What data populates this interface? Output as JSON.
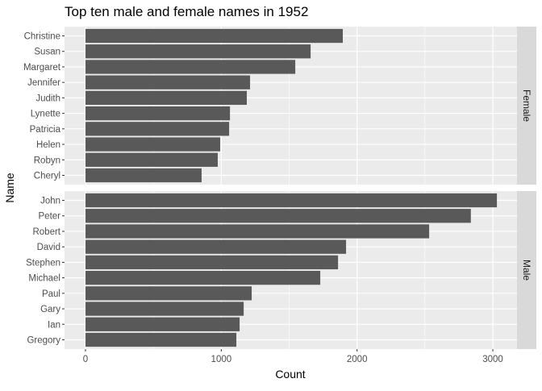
{
  "chart_data": {
    "type": "bar",
    "orientation": "horizontal",
    "title": "Top ten male and female names in 1952",
    "xlabel": "Count",
    "ylabel": "Name",
    "xlim": [
      0,
      3180
    ],
    "x_ticks": [
      0,
      1000,
      2000,
      3000
    ],
    "x_tick_labels": [
      "0",
      "1000",
      "2000",
      "3000"
    ],
    "grid": true,
    "bar_color": "#595959",
    "panel_background": "#EBEBEB",
    "strip_background": "#D9D9D9",
    "facets": [
      {
        "label": "Female",
        "categories": [
          "Christine",
          "Susan",
          "Margaret",
          "Jennifer",
          "Judith",
          "Lynette",
          "Patricia",
          "Helen",
          "Robyn",
          "Cheryl"
        ],
        "values": [
          1895,
          1658,
          1545,
          1212,
          1188,
          1064,
          1058,
          992,
          974,
          855
        ]
      },
      {
        "label": "Male",
        "categories": [
          "John",
          "Peter",
          "Robert",
          "David",
          "Stephen",
          "Michael",
          "Paul",
          "Gary",
          "Ian",
          "Gregory"
        ],
        "values": [
          3030,
          2838,
          2531,
          1919,
          1860,
          1729,
          1224,
          1165,
          1135,
          1111
        ]
      }
    ]
  }
}
